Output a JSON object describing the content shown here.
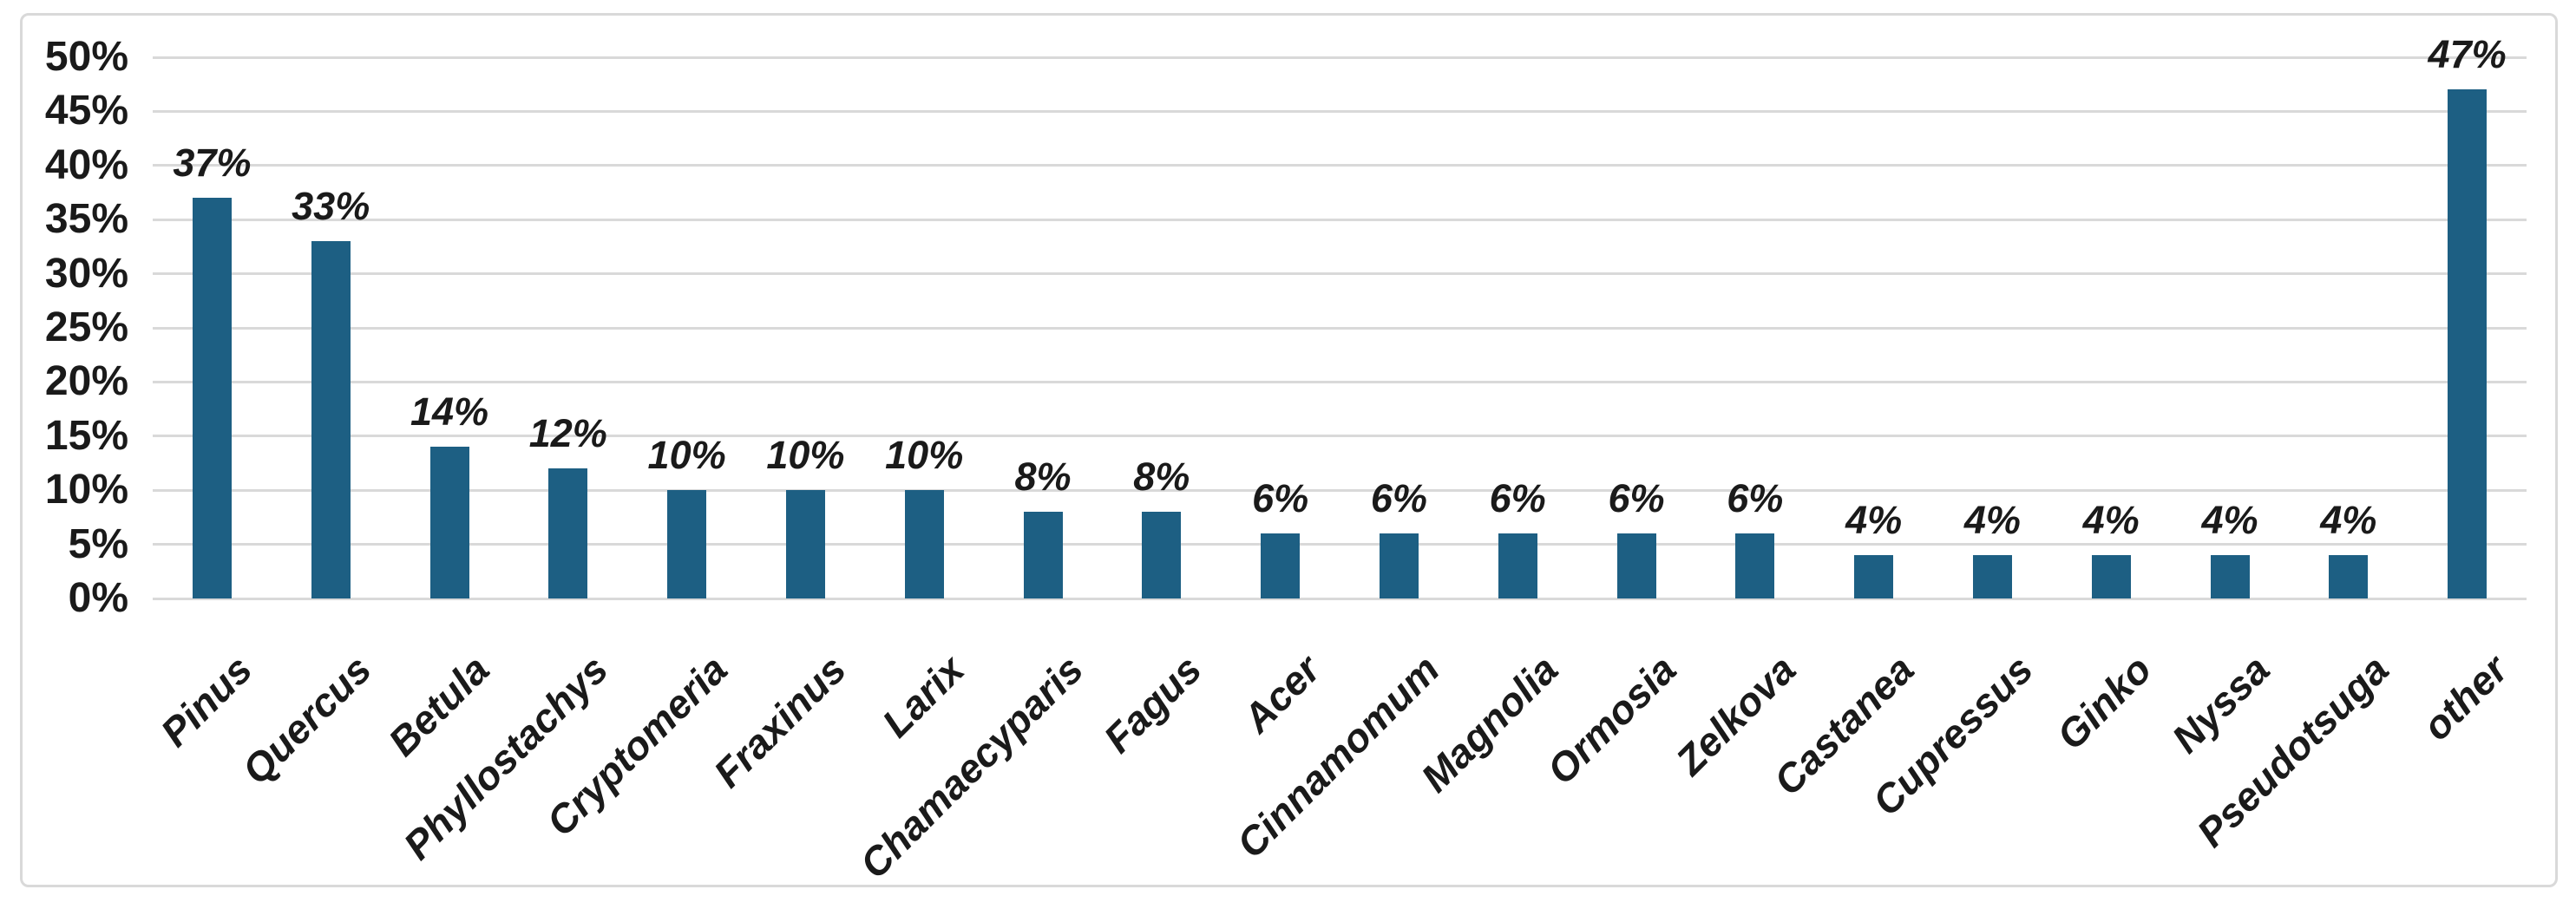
{
  "chart_data": {
    "type": "bar",
    "title": "",
    "xlabel": "",
    "ylabel": "",
    "categories": [
      "Pinus",
      "Quercus",
      "Betula",
      "Phyllostachys",
      "Cryptomeria",
      "Fraxinus",
      "Larix",
      "Chamaecyparis",
      "Fagus",
      "Acer",
      "Cinnamomum",
      "Magnolia",
      "Ormosia",
      "Zelkova",
      "Castanea",
      "Cupressus",
      "Ginko",
      "Nyssa",
      "Pseudotsuga",
      "other"
    ],
    "values": [
      37,
      33,
      14,
      12,
      10,
      10,
      10,
      8,
      8,
      6,
      6,
      6,
      6,
      6,
      4,
      4,
      4,
      4,
      4,
      47
    ],
    "data_labels": [
      "37%",
      "33%",
      "14%",
      "12%",
      "10%",
      "10%",
      "10%",
      "8%",
      "8%",
      "6%",
      "6%",
      "6%",
      "6%",
      "6%",
      "4%",
      "4%",
      "4%",
      "4%",
      "4%",
      "47%"
    ],
    "y_tick_values": [
      0,
      5,
      10,
      15,
      20,
      25,
      30,
      35,
      40,
      45,
      50
    ],
    "y_tick_labels": [
      "0%",
      "5%",
      "10%",
      "15%",
      "20%",
      "25%",
      "30%",
      "35%",
      "40%",
      "45%",
      "50%"
    ],
    "ylim": [
      0,
      50
    ],
    "grid": true,
    "legend": "none",
    "category_label_rotation_deg": -45,
    "colors": {
      "bar": "#1D5F83",
      "gridline": "#d9d9d9",
      "text": "#1a1a1a",
      "figure_border": "#d9d9d9",
      "background": "#ffffff"
    }
  }
}
